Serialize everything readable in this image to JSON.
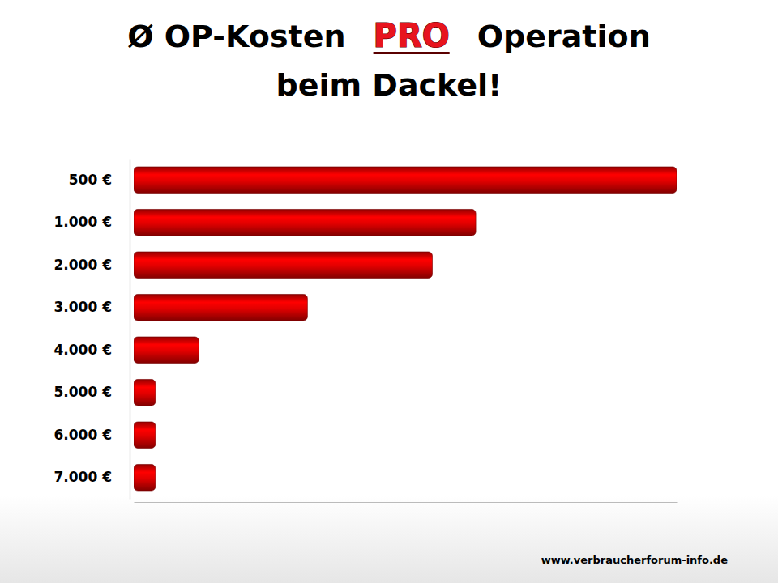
{
  "chart_data": {
    "type": "bar",
    "orientation": "horizontal",
    "title": [
      "Ø OP-Kosten",
      "PRO",
      "Operation"
    ],
    "subtitle": "beim Dackel!",
    "annotations": [
      "www.verbraucherforum-info.de"
    ],
    "categories": [
      "500 €",
      "1.000 €",
      "2.000 €",
      "3.000 €",
      "4.000 €",
      "5.000 €",
      "6.000 €",
      "7.000 €"
    ],
    "values": [
      100,
      63,
      55,
      32,
      12,
      4,
      4,
      4
    ],
    "color": "#e00000",
    "xlim": [
      0,
      100
    ],
    "tick_labels": "y",
    "grid": false
  }
}
